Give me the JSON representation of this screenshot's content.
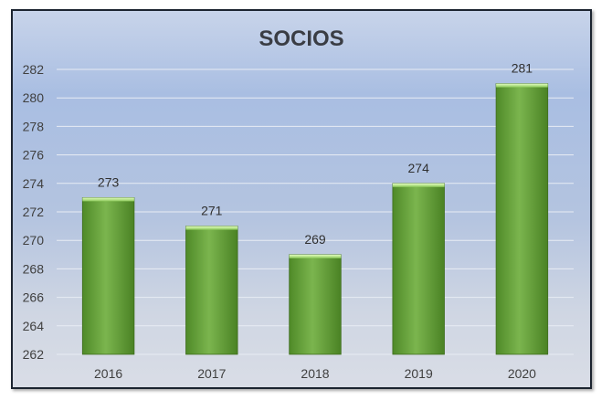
{
  "chart_data": {
    "type": "bar",
    "title": "SOCIOS",
    "categories": [
      "2016",
      "2017",
      "2018",
      "2019",
      "2020"
    ],
    "values": [
      273,
      271,
      269,
      274,
      281
    ],
    "data_labels": [
      "273",
      "271",
      "269",
      "274",
      "281"
    ],
    "ylim": [
      262,
      282
    ],
    "yticks": [
      "262",
      "264",
      "266",
      "268",
      "270",
      "272",
      "274",
      "276",
      "278",
      "280",
      "282"
    ],
    "grid": true,
    "legend": "none",
    "bar_color": "#6aa83e",
    "bar_highlight": "#c6ec9a",
    "bar_edge": "#3f6d1f",
    "grid_color": "#e8ecf4"
  }
}
